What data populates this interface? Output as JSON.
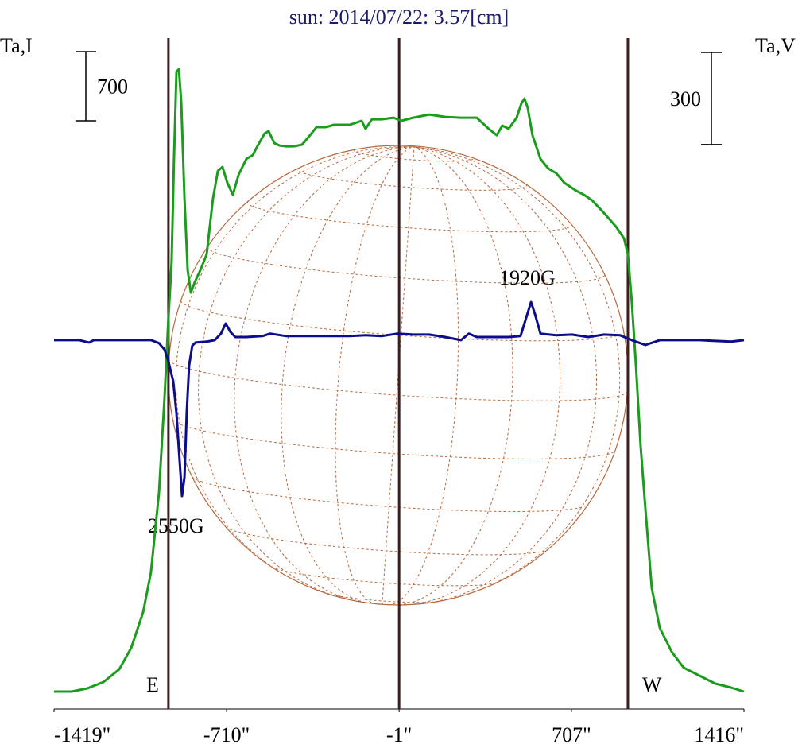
{
  "chart_data": {
    "type": "line",
    "title": "sun: 2014/07/22: 3.57[cm]",
    "ylabel": "Ta,I",
    "y2label": "Ta,V",
    "xlim": [
      -1419,
      1416
    ],
    "xticks": [
      {
        "value": -1419,
        "label": "-1419\""
      },
      {
        "value": -710,
        "label": "-710\""
      },
      {
        "value": -1,
        "label": "-1\""
      },
      {
        "value": 707,
        "label": "707\""
      },
      {
        "value": 1416,
        "label": "1416\""
      }
    ],
    "ylim": [
      0,
      7181
    ],
    "y2lim": [
      -1202,
      1108
    ],
    "vlines": [
      -949,
      -1,
      939
    ],
    "limb_labels": [
      "E",
      "W"
    ],
    "annotations": [
      "1920G",
      "2550G"
    ],
    "scale_bars": [
      {
        "axis": "y",
        "value": 700
      },
      {
        "axis": "y2",
        "value": 300
      }
    ],
    "series": [
      {
        "color": "#1c9c1c",
        "x": [
          -1419,
          -1347,
          -1282,
          -1216,
          -1151,
          -1102,
          -1053,
          -1021,
          -988,
          -965,
          -949,
          -936,
          -926,
          -916,
          -906,
          -896,
          -883,
          -870,
          -857,
          -841,
          -818,
          -792,
          -766,
          -746,
          -727,
          -707,
          -684,
          -661,
          -629,
          -602,
          -580,
          -554,
          -537,
          -514,
          -492,
          -465,
          -433,
          -400,
          -367,
          -341,
          -302,
          -269,
          -204,
          -155,
          -139,
          -113,
          -73,
          -24,
          8,
          57,
          123,
          188,
          253,
          318,
          367,
          400,
          423,
          449,
          482,
          501,
          514,
          527,
          547,
          580,
          612,
          645,
          678,
          727,
          759,
          792,
          841,
          890,
          923,
          939,
          955,
          972,
          991,
          1011,
          1037,
          1070,
          1119,
          1168,
          1233,
          1298,
          1363,
          1416
        ],
        "values": [
          177,
          177,
          209,
          274,
          403,
          620,
          982,
          1385,
          2190,
          3156,
          3961,
          4524,
          5571,
          6456,
          6480,
          6134,
          5168,
          4444,
          4218,
          4323,
          4444,
          4605,
          5168,
          5450,
          5490,
          5329,
          5208,
          5410,
          5571,
          5611,
          5716,
          5828,
          5852,
          5732,
          5707,
          5699,
          5699,
          5716,
          5812,
          5893,
          5893,
          5917,
          5917,
          5957,
          5877,
          5973,
          5973,
          5989,
          5957,
          5989,
          6021,
          5997,
          5989,
          5989,
          5877,
          5812,
          5909,
          5877,
          5989,
          6134,
          6182,
          6094,
          5812,
          5571,
          5474,
          5426,
          5329,
          5249,
          5208,
          5152,
          5023,
          4886,
          4766,
          4605,
          4122,
          3478,
          2673,
          2029,
          1224,
          821,
          580,
          419,
          338,
          258,
          217,
          177
        ]
      },
      {
        "color": "#0c0c8c",
        "axis": "y2",
        "x": [
          -1419,
          -1315,
          -1275,
          -1256,
          -1021,
          -988,
          -965,
          -949,
          -929,
          -916,
          -903,
          -893,
          -883,
          -874,
          -864,
          -851,
          -838,
          -792,
          -759,
          -733,
          -714,
          -694,
          -674,
          -629,
          -563,
          -531,
          -465,
          -400,
          -335,
          -269,
          -204,
          -139,
          -73,
          -8,
          57,
          123,
          188,
          253,
          286,
          318,
          384,
          449,
          498,
          521,
          541,
          557,
          580,
          645,
          710,
          776,
          841,
          906,
          955,
          1011,
          1070,
          1233,
          1363,
          1416
        ],
        "values": [
          0,
          0,
          -8,
          0,
          0,
          -10,
          -31,
          -70,
          -135,
          -238,
          -394,
          -508,
          -446,
          -238,
          -83,
          -18,
          -8,
          -5,
          0,
          21,
          54,
          26,
          10,
          10,
          13,
          21,
          13,
          13,
          13,
          13,
          13,
          16,
          13,
          21,
          18,
          18,
          10,
          0,
          21,
          10,
          10,
          10,
          13,
          73,
          124,
          85,
          21,
          16,
          18,
          10,
          18,
          16,
          0,
          -16,
          0,
          0,
          -5,
          0
        ]
      }
    ]
  }
}
